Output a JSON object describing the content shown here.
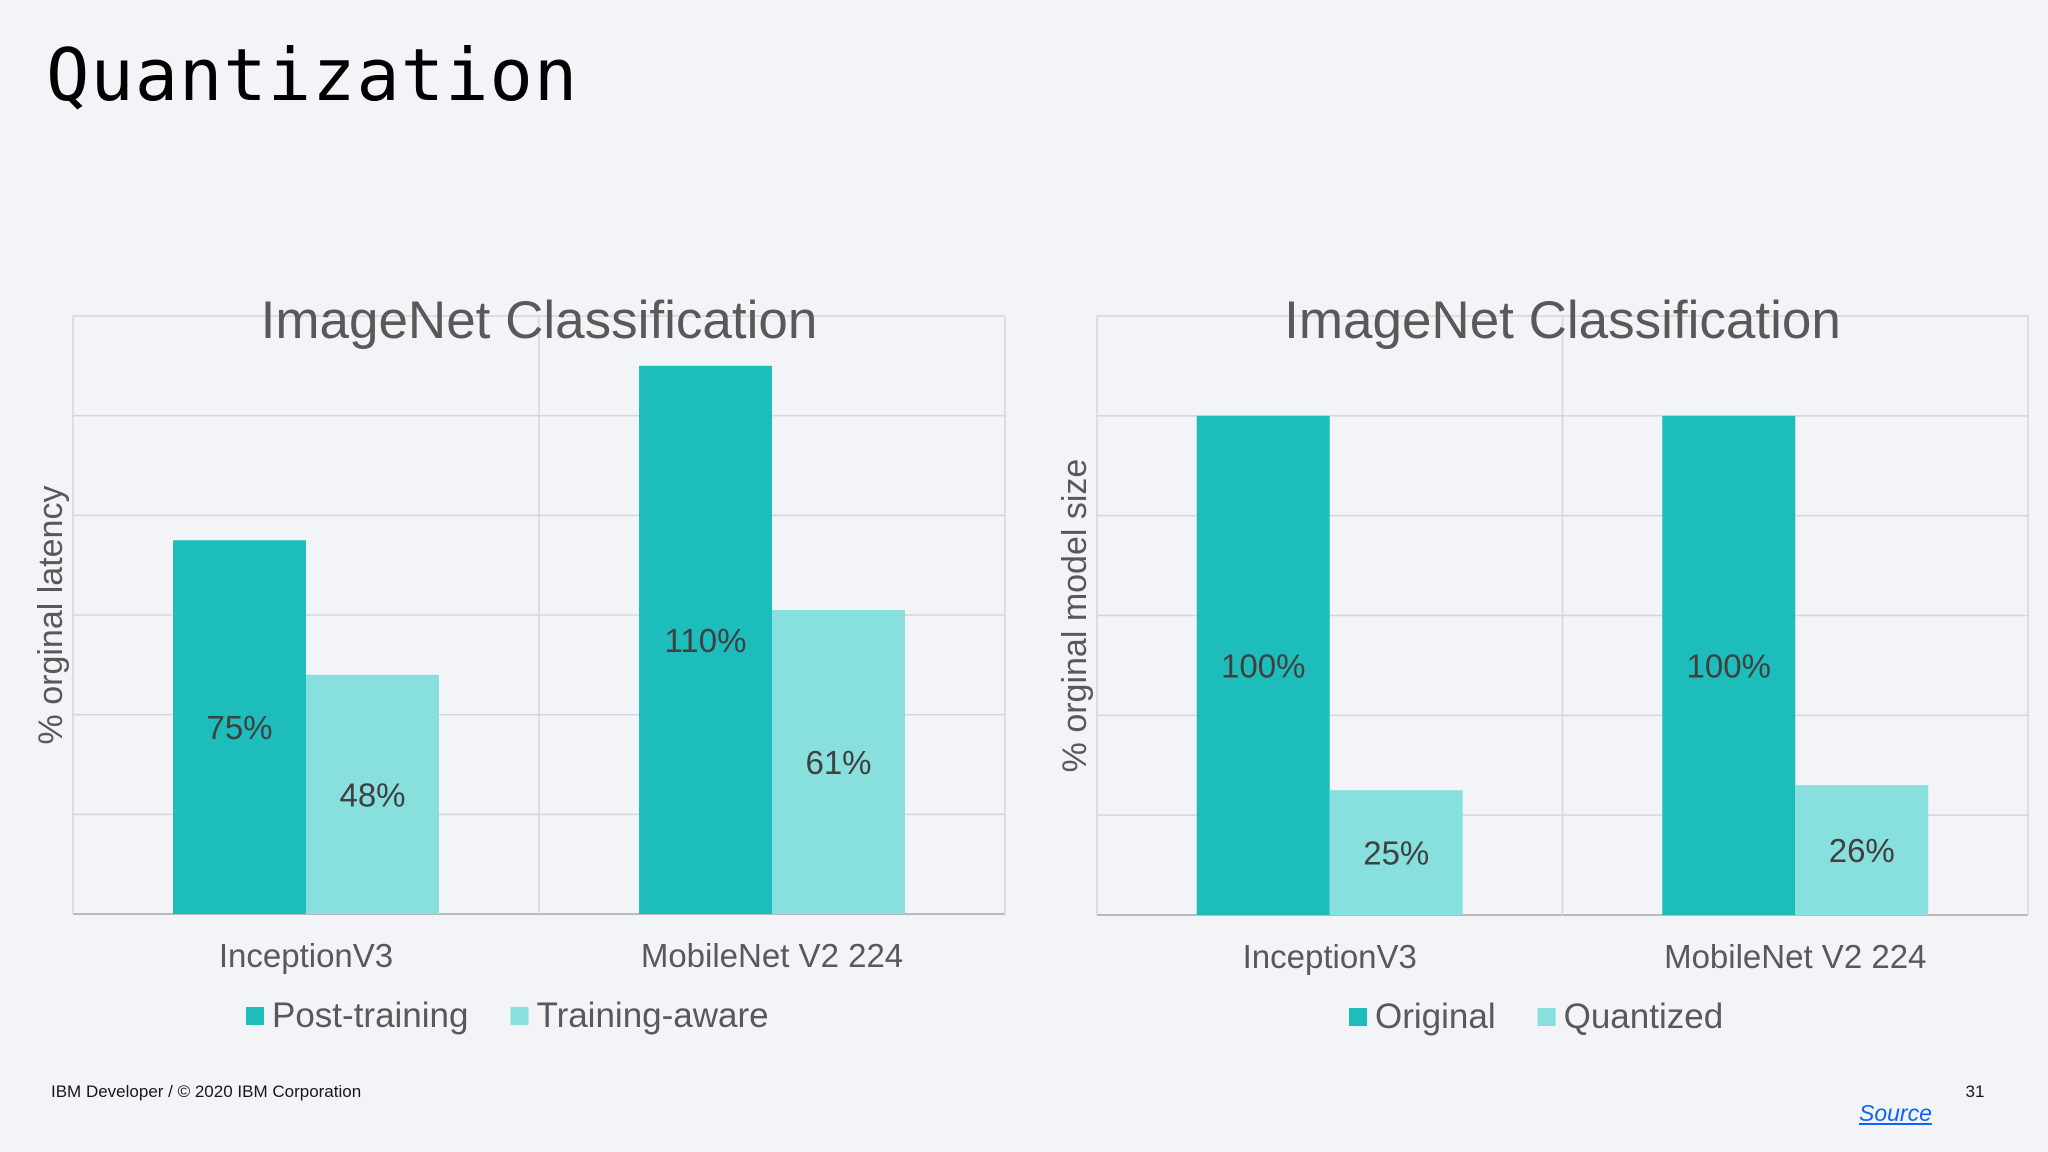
{
  "slide": {
    "title": "Quantization",
    "footer_left": "IBM Developer / © 2020 IBM Corporation",
    "page_number": "31",
    "source_link": "Source"
  },
  "colors": {
    "series_dark": "#1dbdbc",
    "series_light": "#88e0de",
    "grid": "#d4d6d9",
    "text": "#595959",
    "value_label": "#404040"
  },
  "chart_data": [
    {
      "type": "bar",
      "title": "ImageNet Classification",
      "xlabel": "",
      "ylabel": "% orginal latency",
      "categories": [
        "InceptionV3",
        "MobileNet V2 224"
      ],
      "series": [
        {
          "name": "Post-training",
          "values": [
            75,
            110
          ],
          "labels": [
            "75%",
            "110%"
          ]
        },
        {
          "name": "Training-aware",
          "values": [
            48,
            61
          ],
          "labels": [
            "48%",
            "61%"
          ]
        }
      ],
      "ylim": [
        0,
        120
      ],
      "grid": true,
      "y_tick_labels_shown": false,
      "legend": "bottom"
    },
    {
      "type": "bar",
      "title": "ImageNet Classification",
      "xlabel": "",
      "ylabel": "% orginal model size",
      "categories": [
        "InceptionV3",
        "MobileNet V2 224"
      ],
      "series": [
        {
          "name": "Original",
          "values": [
            100,
            100
          ],
          "labels": [
            "100%",
            "100%"
          ]
        },
        {
          "name": "Quantized",
          "values": [
            25,
            26
          ],
          "labels": [
            "25%",
            "26%"
          ]
        }
      ],
      "ylim": [
        0,
        120
      ],
      "grid": true,
      "y_tick_labels_shown": false,
      "legend": "bottom"
    }
  ]
}
